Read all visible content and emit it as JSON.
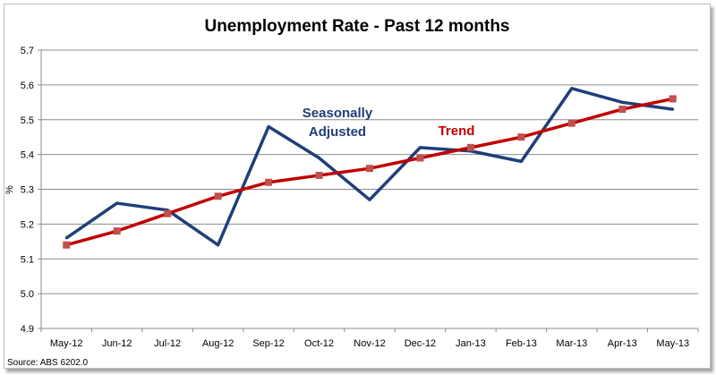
{
  "chart_data": {
    "type": "line",
    "title": "Unemployment Rate - Past 12 months",
    "ylabel": "%",
    "xlabel": "",
    "source": "Source: ABS 6202.0",
    "categories": [
      "May-12",
      "Jun-12",
      "Jul-12",
      "Aug-12",
      "Sep-12",
      "Oct-12",
      "Nov-12",
      "Dec-12",
      "Jan-13",
      "Feb-13",
      "Mar-13",
      "Apr-13",
      "May-13"
    ],
    "ylim": [
      4.9,
      5.7
    ],
    "yticks": [
      "4.9",
      "5.0",
      "5.1",
      "5.2",
      "5.3",
      "5.4",
      "5.5",
      "5.6",
      "5.7"
    ],
    "grid": "horizontal",
    "series": [
      {
        "name": "Seasonally Adjusted",
        "label_lines": [
          "Seasonally",
          "Adjusted"
        ],
        "color": "#1f3f7a",
        "values": [
          5.16,
          5.26,
          5.24,
          5.14,
          5.48,
          5.39,
          5.27,
          5.42,
          5.41,
          5.38,
          5.59,
          5.55,
          5.53
        ]
      },
      {
        "name": "Trend",
        "label_lines": [
          "Trend"
        ],
        "color": "#c0504d",
        "values": [
          5.14,
          5.18,
          5.23,
          5.28,
          5.32,
          5.34,
          5.36,
          5.39,
          5.42,
          5.45,
          5.49,
          5.53,
          5.56
        ]
      }
    ]
  }
}
